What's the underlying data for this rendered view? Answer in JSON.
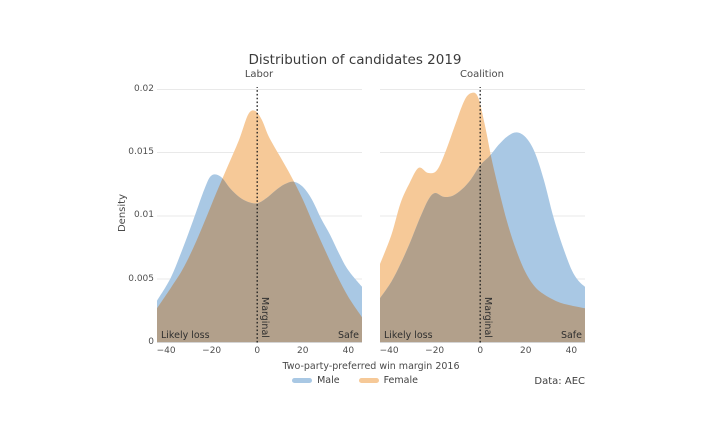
{
  "chart_data": {
    "type": "area",
    "title": "Distribution of candidates 2019",
    "xlabel": "Two-party-preferred win margin 2016",
    "ylabel": "Density",
    "caption": "Data: AEC",
    "grid": true,
    "legend_position": "bottom-center",
    "legend": [
      {
        "name": "Male",
        "color": "#a9c8e4"
      },
      {
        "name": "Female",
        "color": "#f6c998"
      }
    ],
    "overlap_color": "#b2a08b",
    "xlim": [
      -44,
      46
    ],
    "ylim": [
      0,
      0.0205
    ],
    "xticks": [
      -40,
      -20,
      0,
      20,
      40
    ],
    "xtick_labels": [
      "−40",
      "−20",
      "0",
      "20",
      "40"
    ],
    "yticks": [
      0,
      0.005,
      0.01,
      0.015,
      0.02
    ],
    "ytick_labels": [
      "0",
      "0.005",
      "0.01",
      "0.015",
      "0.02"
    ],
    "vline": {
      "x": 0,
      "style": "dotted",
      "color": "#1c1c1c"
    },
    "annotations": {
      "left": "Likely loss",
      "center": "Marginal",
      "right": "Safe"
    },
    "facets": [
      {
        "label": "Labor",
        "series": [
          {
            "name": "Male",
            "points": [
              [
                -44,
                0.0033
              ],
              [
                -38,
                0.0051
              ],
              [
                -33,
                0.0073
              ],
              [
                -28,
                0.0097
              ],
              [
                -23,
                0.0122
              ],
              [
                -20,
                0.0132
              ],
              [
                -16,
                0.0131
              ],
              [
                -12,
                0.0122
              ],
              [
                -8,
                0.0115
              ],
              [
                -4,
                0.0111
              ],
              [
                0,
                0.011
              ],
              [
                4,
                0.0114
              ],
              [
                8,
                0.012
              ],
              [
                12,
                0.0125
              ],
              [
                16,
                0.0127
              ],
              [
                20,
                0.0123
              ],
              [
                24,
                0.0113
              ],
              [
                28,
                0.0098
              ],
              [
                32,
                0.0085
              ],
              [
                36,
                0.007
              ],
              [
                40,
                0.0057
              ],
              [
                46,
                0.0044
              ]
            ]
          },
          {
            "name": "Female",
            "points": [
              [
                -44,
                0.0027
              ],
              [
                -38,
                0.0043
              ],
              [
                -33,
                0.0057
              ],
              [
                -28,
                0.0075
              ],
              [
                -23,
                0.0096
              ],
              [
                -18,
                0.0118
              ],
              [
                -13,
                0.0139
              ],
              [
                -8,
                0.016
              ],
              [
                -4,
                0.018
              ],
              [
                -1,
                0.0183
              ],
              [
                2,
                0.0176
              ],
              [
                5,
                0.0163
              ],
              [
                10,
                0.0147
              ],
              [
                15,
                0.0131
              ],
              [
                20,
                0.0113
              ],
              [
                25,
                0.0092
              ],
              [
                30,
                0.0072
              ],
              [
                35,
                0.0053
              ],
              [
                40,
                0.0036
              ],
              [
                46,
                0.002
              ]
            ]
          }
        ]
      },
      {
        "label": "Coalition",
        "series": [
          {
            "name": "Male",
            "points": [
              [
                -44,
                0.0035
              ],
              [
                -39,
                0.0048
              ],
              [
                -35,
                0.0062
              ],
              [
                -31,
                0.0078
              ],
              [
                -27,
                0.0096
              ],
              [
                -23,
                0.0112
              ],
              [
                -20,
                0.0118
              ],
              [
                -16,
                0.0115
              ],
              [
                -12,
                0.0116
              ],
              [
                -8,
                0.0121
              ],
              [
                -4,
                0.0129
              ],
              [
                0,
                0.014
              ],
              [
                4,
                0.0147
              ],
              [
                8,
                0.0156
              ],
              [
                12,
                0.0163
              ],
              [
                16,
                0.0166
              ],
              [
                20,
                0.0162
              ],
              [
                24,
                0.015
              ],
              [
                28,
                0.0128
              ],
              [
                32,
                0.01
              ],
              [
                36,
                0.0077
              ],
              [
                40,
                0.0058
              ],
              [
                43,
                0.0049
              ],
              [
                46,
                0.0044
              ]
            ]
          },
          {
            "name": "Female",
            "points": [
              [
                -44,
                0.0062
              ],
              [
                -39,
                0.0085
              ],
              [
                -35,
                0.011
              ],
              [
                -31,
                0.0126
              ],
              [
                -27,
                0.0138
              ],
              [
                -23,
                0.0134
              ],
              [
                -19,
                0.0136
              ],
              [
                -15,
                0.0152
              ],
              [
                -11,
                0.0172
              ],
              [
                -7,
                0.0191
              ],
              [
                -4,
                0.0197
              ],
              [
                -1,
                0.0194
              ],
              [
                2,
                0.0172
              ],
              [
                5,
                0.0145
              ],
              [
                8,
                0.0122
              ],
              [
                12,
                0.0094
              ],
              [
                16,
                0.0072
              ],
              [
                20,
                0.0055
              ],
              [
                24,
                0.0044
              ],
              [
                28,
                0.0038
              ],
              [
                33,
                0.0033
              ],
              [
                38,
                0.003
              ],
              [
                46,
                0.0027
              ]
            ]
          }
        ]
      }
    ]
  }
}
